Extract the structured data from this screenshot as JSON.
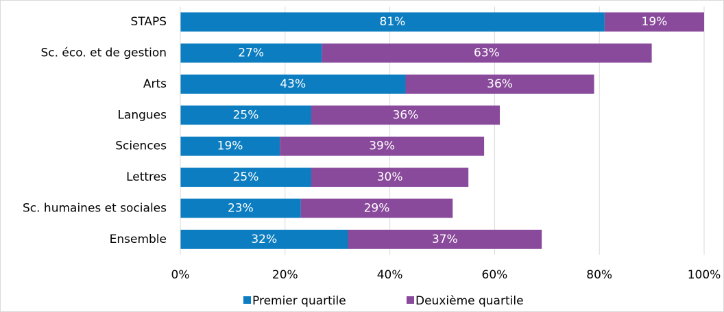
{
  "chart_data": {
    "type": "bar",
    "orientation": "horizontal",
    "stacked": true,
    "categories": [
      "STAPS",
      "Sc. éco. et de gestion",
      "Arts",
      "Langues",
      "Sciences",
      "Lettres",
      "Sc. humaines et sociales",
      "Ensemble"
    ],
    "series": [
      {
        "name": "Premier quartile",
        "color": "#0b7dc0",
        "values": [
          81,
          27,
          43,
          25,
          19,
          25,
          23,
          32
        ],
        "value_labels": [
          "81%",
          "27%",
          "43%",
          "25%",
          "19%",
          "25%",
          "23%",
          "32%"
        ]
      },
      {
        "name": "Deuxième quartile",
        "color": "#8a4a9b",
        "values": [
          19,
          63,
          36,
          36,
          39,
          30,
          29,
          37
        ],
        "value_labels": [
          "19%",
          "63%",
          "36%",
          "36%",
          "39%",
          "30%",
          "29%",
          "37%"
        ]
      }
    ],
    "xlim": [
      0,
      100
    ],
    "xticks": [
      {
        "value": 0,
        "label": "0%"
      },
      {
        "value": 20,
        "label": "20%"
      },
      {
        "value": 40,
        "label": "40%"
      },
      {
        "value": 60,
        "label": "60%"
      },
      {
        "value": 80,
        "label": "80%"
      },
      {
        "value": 100,
        "label": "100%"
      }
    ],
    "grid": true,
    "legend": "bottom"
  }
}
